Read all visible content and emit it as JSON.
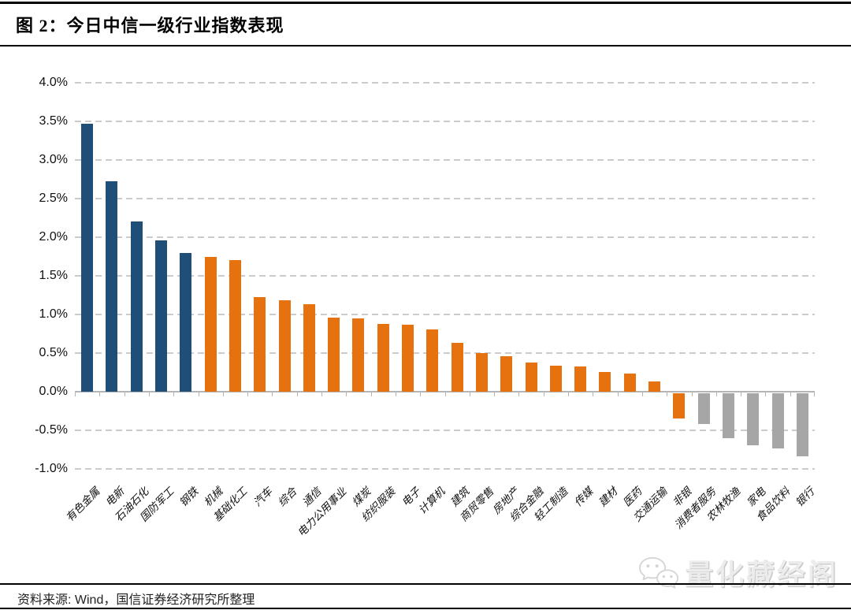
{
  "figure": {
    "title": "图 2：今日中信一级行业指数表现",
    "source": "资料来源: Wind，国信证券经济研究所整理",
    "watermark": "量化藏经阁"
  },
  "colors": {
    "blue": "#1F4E79",
    "orange": "#E5720F",
    "gray": "#A6A6A6",
    "gridline": "#CBCBCB",
    "axis": "#B5B5B5"
  },
  "chart_data": {
    "type": "bar",
    "title": "今日中信一级行业指数表现",
    "categories": [
      "有色金属",
      "电新",
      "石油石化",
      "国防军工",
      "钢铁",
      "机械",
      "基础化工",
      "汽车",
      "综合",
      "通信",
      "电力公用事业",
      "煤炭",
      "纺织服装",
      "电子",
      "计算机",
      "建筑",
      "商贸零售",
      "房地产",
      "综合金融",
      "轻工制造",
      "传媒",
      "建材",
      "医药",
      "交通运输",
      "非银",
      "消费者服务",
      "农林牧渔",
      "家电",
      "食品饮料",
      "银行"
    ],
    "values": [
      3.47,
      2.72,
      2.2,
      1.96,
      1.8,
      1.74,
      1.7,
      1.22,
      1.18,
      1.13,
      0.96,
      0.95,
      0.88,
      0.87,
      0.81,
      0.63,
      0.5,
      0.46,
      0.38,
      0.34,
      0.33,
      0.26,
      0.23,
      0.13,
      -0.33,
      -0.4,
      -0.58,
      -0.67,
      -0.71,
      -0.82
    ],
    "value_unit": "%",
    "bar_colors": [
      "blue",
      "blue",
      "blue",
      "blue",
      "blue",
      "orange",
      "orange",
      "orange",
      "orange",
      "orange",
      "orange",
      "orange",
      "orange",
      "orange",
      "orange",
      "orange",
      "orange",
      "orange",
      "orange",
      "orange",
      "orange",
      "orange",
      "orange",
      "orange",
      "orange",
      "gray",
      "gray",
      "gray",
      "gray",
      "gray"
    ],
    "xlabel": "",
    "ylabel": "",
    "ylim": [
      -1.0,
      4.0
    ],
    "ytick_step": 0.5,
    "yticks": [
      "4.0%",
      "3.5%",
      "3.0%",
      "2.5%",
      "2.0%",
      "1.5%",
      "1.0%",
      "0.5%",
      "0.0%",
      "-0.5%",
      "-1.0%"
    ],
    "grid": "horizontal-dashed",
    "legend": "none"
  }
}
